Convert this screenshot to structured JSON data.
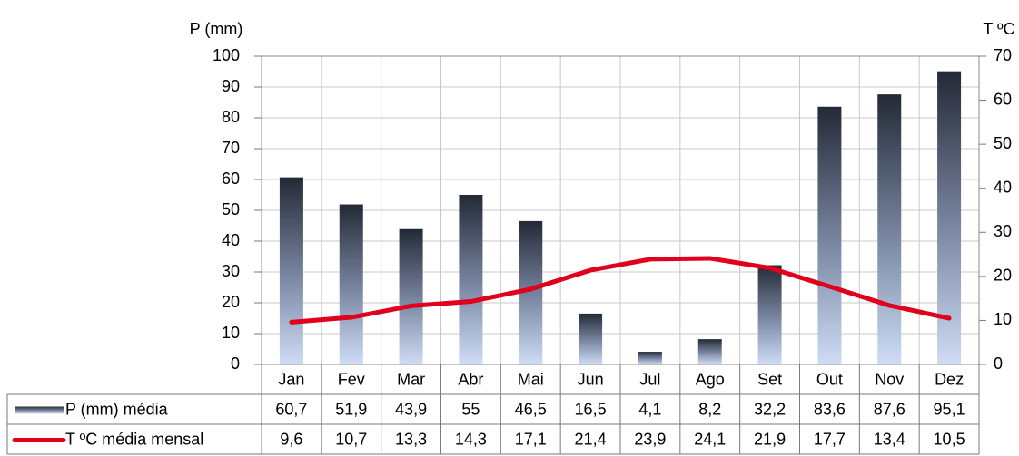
{
  "chart_data": {
    "type": "bar",
    "ylabel": "P (mm)",
    "y2label": "T ºC",
    "categories": [
      "Jan",
      "Fev",
      "Mar",
      "Abr",
      "Mai",
      "Jun",
      "Jul",
      "Ago",
      "Set",
      "Out",
      "Nov",
      "Dez"
    ],
    "series": [
      {
        "name": "P (mm) média",
        "color": "#232a36",
        "type": "bar",
        "values": [
          60.7,
          51.9,
          43.9,
          55,
          46.5,
          16.5,
          4.1,
          8.2,
          32.2,
          83.6,
          87.6,
          95.1
        ],
        "value_labels": [
          "60,7",
          "51,9",
          "43,9",
          "55",
          "46,5",
          "16,5",
          "4,1",
          "8,2",
          "32,2",
          "83,6",
          "87,6",
          "95,1"
        ]
      },
      {
        "name": "T ºC média mensal",
        "color": "#e0001b",
        "type": "line",
        "axis": "y2",
        "values": [
          9.6,
          10.7,
          13.3,
          14.3,
          17.1,
          21.4,
          23.9,
          24.1,
          21.9,
          17.7,
          13.4,
          10.5
        ],
        "value_labels": [
          "9,6",
          "10,7",
          "13,3",
          "14,3",
          "17,1",
          "21,4",
          "23,9",
          "24,1",
          "21,9",
          "17,7",
          "13,4",
          "10,5"
        ]
      }
    ],
    "ylim": [
      0,
      100
    ],
    "yticks": [
      0,
      10,
      20,
      30,
      40,
      50,
      60,
      70,
      80,
      90,
      100
    ],
    "y2lim": [
      0,
      70
    ],
    "y2ticks": [
      0,
      10,
      20,
      30,
      40,
      50,
      60,
      70
    ],
    "grid": true
  }
}
